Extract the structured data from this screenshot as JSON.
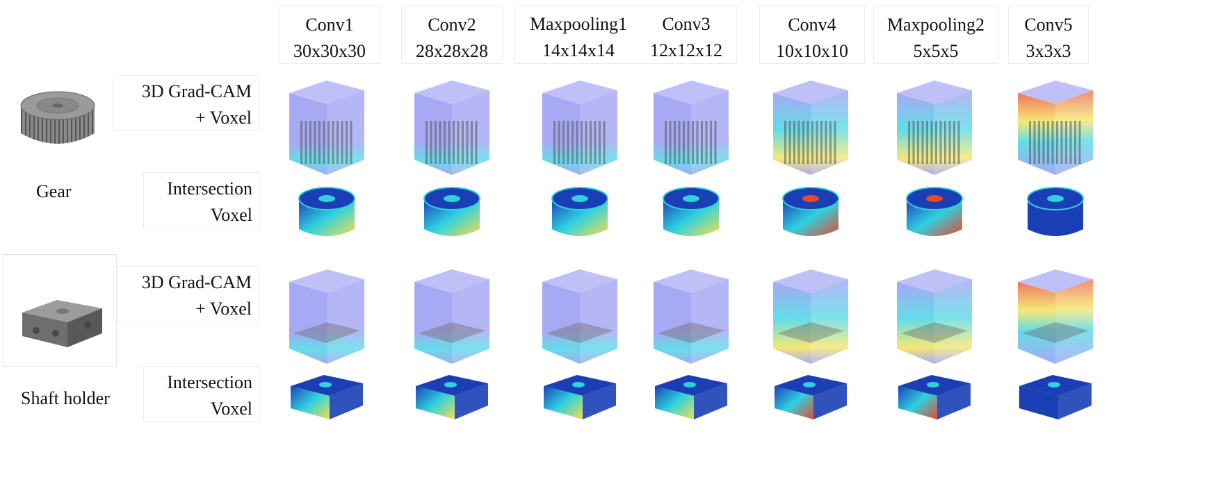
{
  "columns": [
    {
      "name": "Conv1",
      "size": "30x30x30"
    },
    {
      "name": "Conv2",
      "size": "28x28x28"
    },
    {
      "name": "Maxpooling1",
      "size": "14x14x14"
    },
    {
      "name": "Conv3",
      "size": "12x12x12"
    },
    {
      "name": "Conv4",
      "size": "10x10x10"
    },
    {
      "name": "Maxpooling2",
      "size": "5x5x5"
    },
    {
      "name": "Conv5",
      "size": "3x3x3"
    }
  ],
  "objects": [
    {
      "name": "Gear",
      "shape": "gear"
    },
    {
      "name": "Shaft holder",
      "shape": "shaft-holder"
    }
  ],
  "row_types": [
    {
      "line1": "3D Grad-CAM",
      "line2": "+ Voxel",
      "kind": "gradcam"
    },
    {
      "line1": "Intersection",
      "line2": "Voxel",
      "kind": "intersection"
    }
  ],
  "colors": {
    "voxel_box": "#8a8cf0",
    "heat_low": "#1a3fb5",
    "heat_mid": "#2fd0e0",
    "heat_high": "#e84a2a",
    "heat_yellow": "#f2e04a",
    "model_gray": "#7a7a7a"
  }
}
